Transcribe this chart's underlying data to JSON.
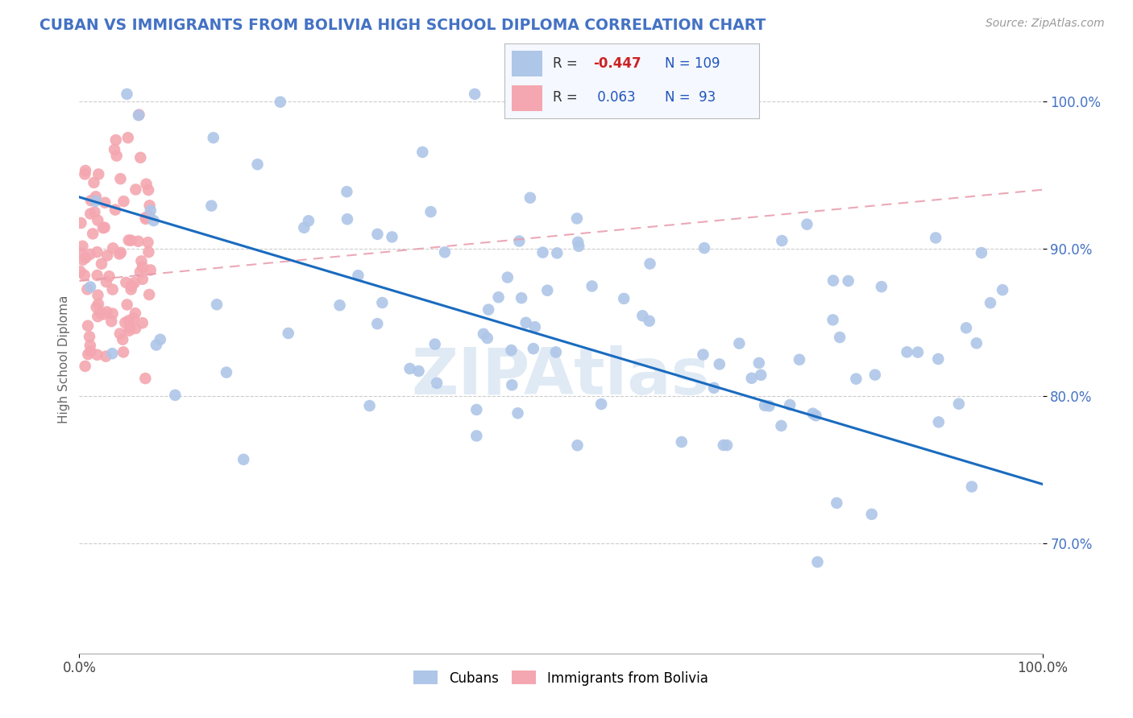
{
  "title": "CUBAN VS IMMIGRANTS FROM BOLIVIA HIGH SCHOOL DIPLOMA CORRELATION CHART",
  "source": "Source: ZipAtlas.com",
  "ylabel": "High School Diploma",
  "yticks": [
    "70.0%",
    "80.0%",
    "90.0%",
    "100.0%"
  ],
  "ytick_vals": [
    0.7,
    0.8,
    0.9,
    1.0
  ],
  "xlim": [
    0.0,
    1.0
  ],
  "ylim": [
    0.625,
    1.025
  ],
  "cubans_color": "#aec6e8",
  "bolivia_color": "#f4a7b0",
  "trend_cubans_color": "#1a6bbf",
  "trend_bolivia_color": "#e899aa",
  "watermark": "ZIPAtlas",
  "background_color": "#ffffff",
  "n_cubans": 109,
  "n_bolivia": 93,
  "r_cubans": -0.447,
  "r_bolivia": 0.063
}
